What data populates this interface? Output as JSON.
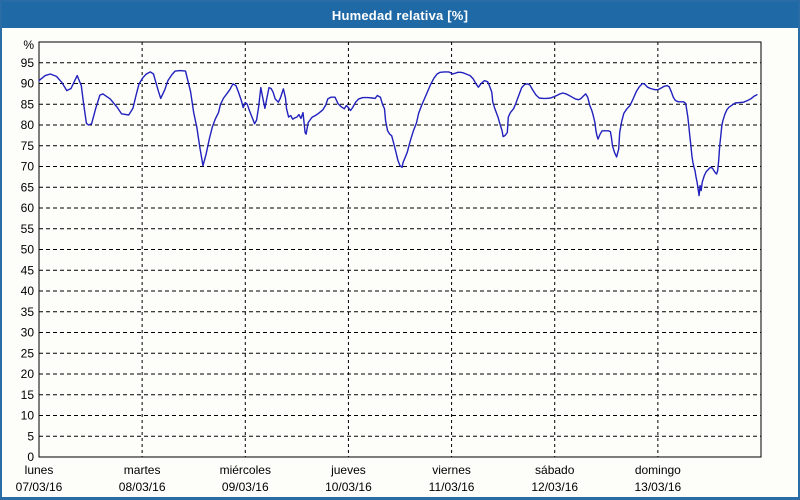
{
  "header": {
    "title": "Humedad relativa [%]"
  },
  "colors": {
    "title_bar_bg": "#1e69a6",
    "frame_border": "#2a6ca5",
    "plot_border": "#000000",
    "grid": "#000000",
    "line": "#2121bd",
    "text": "#000000",
    "background": "#fdfdfa"
  },
  "chart_data": {
    "type": "line",
    "title": "Humedad relativa [%]",
    "ylabel": "%",
    "y_unit": "%",
    "ylim": [
      0,
      100
    ],
    "ytick_start": 0,
    "ytick_end": 95,
    "ytick_step": 5,
    "grid": "dashed",
    "legend_position": "none",
    "x_unit": "days from 07/03/16 00:00",
    "xlim_days": [
      0,
      7
    ],
    "days": [
      {
        "name": "lunes",
        "date": "07/03/16"
      },
      {
        "name": "martes",
        "date": "08/03/16"
      },
      {
        "name": "miércoles",
        "date": "09/03/16"
      },
      {
        "name": "jueves",
        "date": "10/03/16"
      },
      {
        "name": "viernes",
        "date": "11/03/16"
      },
      {
        "name": "sábado",
        "date": "12/03/16"
      },
      {
        "name": "domingo",
        "date": "13/03/16"
      }
    ],
    "series": [
      {
        "name": "Humedad relativa",
        "color": "#2121bd",
        "points": [
          [
            0.0,
            90.7
          ],
          [
            0.06,
            91.9
          ],
          [
            0.11,
            92.3
          ],
          [
            0.17,
            91.7
          ],
          [
            0.22,
            90.3
          ],
          [
            0.27,
            88.3
          ],
          [
            0.31,
            88.8
          ],
          [
            0.37,
            91.9
          ],
          [
            0.41,
            89.5
          ],
          [
            0.43,
            85.5
          ],
          [
            0.46,
            80.4
          ],
          [
            0.48,
            80.0
          ],
          [
            0.51,
            80.3
          ],
          [
            0.55,
            84.0
          ],
          [
            0.59,
            87.2
          ],
          [
            0.62,
            87.5
          ],
          [
            0.69,
            86.3
          ],
          [
            0.76,
            84.2
          ],
          [
            0.8,
            82.7
          ],
          [
            0.87,
            82.4
          ],
          [
            0.91,
            84.0
          ],
          [
            0.94,
            87.1
          ],
          [
            0.97,
            89.9
          ],
          [
            1.01,
            91.5
          ],
          [
            1.04,
            92.3
          ],
          [
            1.08,
            92.8
          ],
          [
            1.11,
            92.3
          ],
          [
            1.13,
            90.5
          ],
          [
            1.16,
            88.0
          ],
          [
            1.18,
            86.4
          ],
          [
            1.22,
            88.5
          ],
          [
            1.25,
            90.7
          ],
          [
            1.29,
            92.2
          ],
          [
            1.32,
            93.0
          ],
          [
            1.37,
            93.1
          ],
          [
            1.42,
            93.0
          ],
          [
            1.47,
            88.0
          ],
          [
            1.5,
            83.0
          ],
          [
            1.53,
            79.5
          ],
          [
            1.56,
            74.5
          ],
          [
            1.59,
            70.2
          ],
          [
            1.62,
            73.0
          ],
          [
            1.65,
            76.5
          ],
          [
            1.68,
            79.5
          ],
          [
            1.71,
            81.5
          ],
          [
            1.74,
            83.0
          ],
          [
            1.76,
            85.0
          ],
          [
            1.79,
            86.5
          ],
          [
            1.82,
            87.5
          ],
          [
            1.85,
            88.5
          ],
          [
            1.88,
            89.9
          ],
          [
            1.91,
            89.5
          ],
          [
            1.94,
            87.5
          ],
          [
            1.96,
            86.0
          ],
          [
            1.98,
            84.2
          ],
          [
            2.0,
            85.4
          ],
          [
            2.02,
            85.0
          ],
          [
            2.04,
            83.5
          ],
          [
            2.06,
            82.2
          ],
          [
            2.08,
            81.0
          ],
          [
            2.09,
            80.3
          ],
          [
            2.11,
            81.2
          ],
          [
            2.13,
            84.5
          ],
          [
            2.15,
            89.0
          ],
          [
            2.17,
            86.5
          ],
          [
            2.19,
            84.0
          ],
          [
            2.21,
            86.5
          ],
          [
            2.23,
            89.0
          ],
          [
            2.25,
            88.8
          ],
          [
            2.27,
            87.9
          ],
          [
            2.29,
            86.3
          ],
          [
            2.32,
            85.5
          ],
          [
            2.34,
            86.5
          ],
          [
            2.37,
            88.7
          ],
          [
            2.39,
            86.5
          ],
          [
            2.4,
            84.0
          ],
          [
            2.42,
            81.9
          ],
          [
            2.44,
            82.3
          ],
          [
            2.46,
            81.4
          ],
          [
            2.48,
            81.7
          ],
          [
            2.5,
            81.9
          ],
          [
            2.52,
            82.5
          ],
          [
            2.54,
            81.6
          ],
          [
            2.56,
            83.0
          ],
          [
            2.58,
            78.2
          ],
          [
            2.59,
            77.8
          ],
          [
            2.61,
            80.6
          ],
          [
            2.63,
            81.3
          ],
          [
            2.65,
            81.9
          ],
          [
            2.68,
            82.3
          ],
          [
            2.71,
            82.8
          ],
          [
            2.72,
            83.0
          ],
          [
            2.75,
            83.6
          ],
          [
            2.78,
            84.8
          ],
          [
            2.8,
            86.3
          ],
          [
            2.83,
            86.7
          ],
          [
            2.87,
            86.7
          ],
          [
            2.9,
            85.1
          ],
          [
            2.93,
            84.4
          ],
          [
            2.96,
            83.9
          ],
          [
            2.98,
            84.7
          ],
          [
            3.0,
            84.2
          ],
          [
            3.02,
            83.5
          ],
          [
            3.04,
            84.2
          ],
          [
            3.07,
            85.5
          ],
          [
            3.1,
            86.3
          ],
          [
            3.14,
            86.6
          ],
          [
            3.19,
            86.6
          ],
          [
            3.23,
            86.5
          ],
          [
            3.26,
            86.4
          ],
          [
            3.28,
            87.1
          ],
          [
            3.31,
            86.7
          ],
          [
            3.33,
            85.0
          ],
          [
            3.35,
            83.9
          ],
          [
            3.36,
            81.0
          ],
          [
            3.38,
            78.6
          ],
          [
            3.4,
            77.8
          ],
          [
            3.42,
            77.4
          ],
          [
            3.44,
            75.5
          ],
          [
            3.46,
            73.5
          ],
          [
            3.48,
            71.5
          ],
          [
            3.5,
            70.2
          ],
          [
            3.52,
            69.8
          ],
          [
            3.53,
            71.0
          ],
          [
            3.55,
            72.2
          ],
          [
            3.57,
            73.4
          ],
          [
            3.6,
            76.2
          ],
          [
            3.63,
            78.6
          ],
          [
            3.66,
            80.5
          ],
          [
            3.68,
            82.8
          ],
          [
            3.71,
            84.8
          ],
          [
            3.74,
            86.5
          ],
          [
            3.77,
            88.2
          ],
          [
            3.8,
            89.9
          ],
          [
            3.83,
            91.3
          ],
          [
            3.86,
            92.3
          ],
          [
            3.89,
            92.7
          ],
          [
            3.93,
            92.8
          ],
          [
            3.97,
            92.8
          ],
          [
            3.99,
            92.6
          ],
          [
            4.01,
            92.3
          ],
          [
            4.04,
            92.5
          ],
          [
            4.06,
            92.7
          ],
          [
            4.09,
            92.7
          ],
          [
            4.12,
            92.5
          ],
          [
            4.15,
            92.2
          ],
          [
            4.18,
            91.9
          ],
          [
            4.21,
            91.1
          ],
          [
            4.24,
            89.8
          ],
          [
            4.26,
            89.1
          ],
          [
            4.28,
            89.8
          ],
          [
            4.3,
            90.3
          ],
          [
            4.32,
            90.7
          ],
          [
            4.35,
            90.4
          ],
          [
            4.37,
            89.3
          ],
          [
            4.39,
            87.9
          ],
          [
            4.4,
            85.5
          ],
          [
            4.42,
            83.9
          ],
          [
            4.45,
            81.9
          ],
          [
            4.47,
            80.2
          ],
          [
            4.49,
            78.6
          ],
          [
            4.5,
            77.2
          ],
          [
            4.52,
            77.5
          ],
          [
            4.54,
            78.2
          ],
          [
            4.55,
            81.9
          ],
          [
            4.57,
            83.0
          ],
          [
            4.6,
            83.9
          ],
          [
            4.62,
            85.0
          ],
          [
            4.65,
            87.0
          ],
          [
            4.68,
            89.0
          ],
          [
            4.71,
            89.8
          ],
          [
            4.74,
            89.9
          ],
          [
            4.76,
            89.6
          ],
          [
            4.79,
            88.3
          ],
          [
            4.82,
            87.2
          ],
          [
            4.85,
            86.5
          ],
          [
            4.89,
            86.4
          ],
          [
            4.92,
            86.4
          ],
          [
            4.96,
            86.5
          ],
          [
            4.99,
            86.8
          ],
          [
            5.02,
            87.1
          ],
          [
            5.05,
            87.5
          ],
          [
            5.08,
            87.7
          ],
          [
            5.11,
            87.5
          ],
          [
            5.14,
            87.1
          ],
          [
            5.17,
            86.7
          ],
          [
            5.2,
            86.3
          ],
          [
            5.23,
            86.1
          ],
          [
            5.25,
            86.3
          ],
          [
            5.28,
            87.0
          ],
          [
            5.3,
            87.5
          ],
          [
            5.32,
            86.7
          ],
          [
            5.34,
            84.7
          ],
          [
            5.36,
            83.5
          ],
          [
            5.37,
            82.6
          ],
          [
            5.39,
            80.6
          ],
          [
            5.4,
            78.5
          ],
          [
            5.41,
            77.4
          ],
          [
            5.42,
            76.6
          ],
          [
            5.44,
            77.8
          ],
          [
            5.46,
            78.6
          ],
          [
            5.49,
            78.6
          ],
          [
            5.52,
            78.6
          ],
          [
            5.54,
            78.4
          ],
          [
            5.55,
            77.0
          ],
          [
            5.56,
            75.0
          ],
          [
            5.58,
            73.4
          ],
          [
            5.6,
            72.3
          ],
          [
            5.62,
            74.2
          ],
          [
            5.63,
            78.2
          ],
          [
            5.65,
            81.0
          ],
          [
            5.67,
            82.8
          ],
          [
            5.7,
            83.9
          ],
          [
            5.73,
            84.7
          ],
          [
            5.76,
            86.3
          ],
          [
            5.79,
            88.0
          ],
          [
            5.82,
            89.2
          ],
          [
            5.85,
            90.0
          ],
          [
            5.87,
            89.9
          ],
          [
            5.9,
            89.1
          ],
          [
            5.93,
            88.8
          ],
          [
            5.97,
            88.5
          ],
          [
            6.0,
            88.5
          ],
          [
            6.03,
            88.9
          ],
          [
            6.06,
            89.3
          ],
          [
            6.09,
            89.5
          ],
          [
            6.11,
            89.2
          ],
          [
            6.13,
            88.0
          ],
          [
            6.15,
            86.7
          ],
          [
            6.17,
            85.9
          ],
          [
            6.2,
            85.6
          ],
          [
            6.22,
            85.6
          ],
          [
            6.25,
            85.6
          ],
          [
            6.27,
            85.2
          ],
          [
            6.29,
            82.0
          ],
          [
            6.3,
            79.8
          ],
          [
            6.31,
            77.4
          ],
          [
            6.32,
            75.0
          ],
          [
            6.33,
            72.6
          ],
          [
            6.34,
            71.0
          ],
          [
            6.35,
            69.8
          ],
          [
            6.36,
            69.0
          ],
          [
            6.37,
            67.5
          ],
          [
            6.38,
            66.2
          ],
          [
            6.39,
            64.6
          ],
          [
            6.4,
            63.0
          ],
          [
            6.41,
            65.4
          ],
          [
            6.42,
            64.2
          ],
          [
            6.43,
            66.2
          ],
          [
            6.45,
            67.8
          ],
          [
            6.47,
            68.8
          ],
          [
            6.49,
            69.3
          ],
          [
            6.51,
            69.8
          ],
          [
            6.53,
            69.6
          ],
          [
            6.54,
            69.1
          ],
          [
            6.56,
            68.4
          ],
          [
            6.57,
            68.2
          ],
          [
            6.58,
            69.0
          ],
          [
            6.59,
            71.5
          ],
          [
            6.6,
            75.0
          ],
          [
            6.61,
            77.4
          ],
          [
            6.62,
            79.8
          ],
          [
            6.63,
            81.0
          ],
          [
            6.65,
            82.6
          ],
          [
            6.67,
            83.7
          ],
          [
            6.69,
            84.3
          ],
          [
            6.72,
            84.8
          ],
          [
            6.75,
            85.3
          ],
          [
            6.79,
            85.4
          ],
          [
            6.83,
            85.5
          ],
          [
            6.87,
            85.9
          ],
          [
            6.9,
            86.3
          ],
          [
            6.93,
            86.9
          ],
          [
            6.96,
            87.3
          ]
        ]
      }
    ]
  }
}
